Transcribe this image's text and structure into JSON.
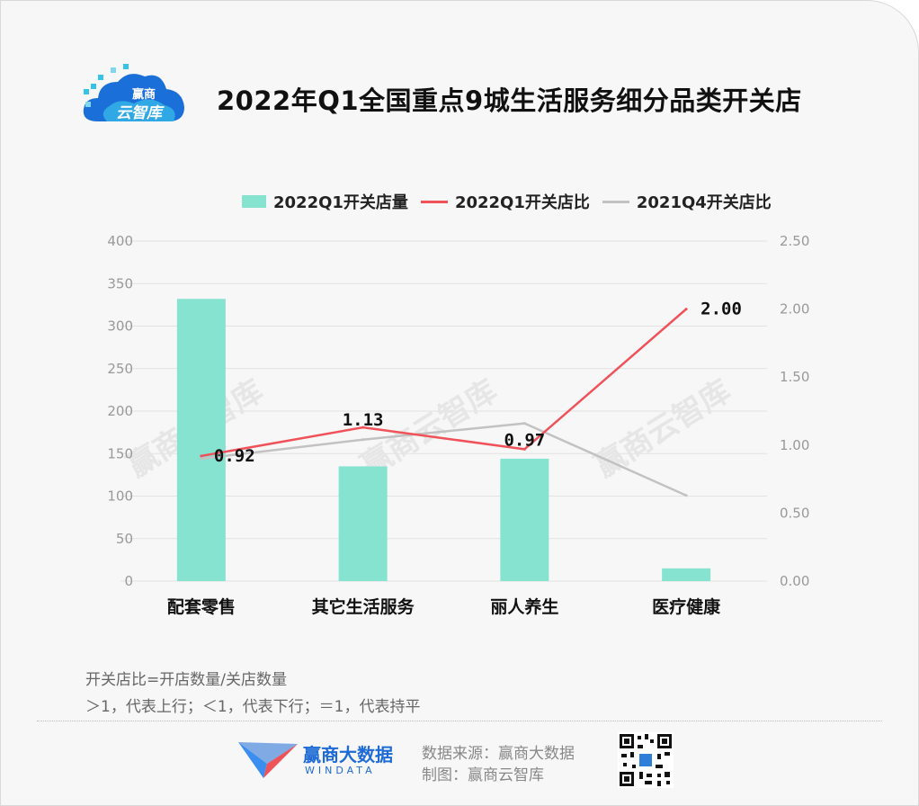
{
  "header": {
    "logo_line1": "赢商",
    "logo_line2": "云智库",
    "title": "2022年Q1全国重点9城生活服务细分品类开关店"
  },
  "legend": [
    {
      "label": "2022Q1开关店量",
      "kind": "bar",
      "color": "#86e3d0"
    },
    {
      "label": "2022Q1开关店比",
      "kind": "line",
      "color": "#f0525a"
    },
    {
      "label": "2021Q4开关店比",
      "kind": "line",
      "color": "#c2c2c2"
    }
  ],
  "chart_data": {
    "type": "bar",
    "categories": [
      "配套零售",
      "其它生活服务",
      "丽人养生",
      "医疗健康"
    ],
    "series": [
      {
        "name": "2022Q1开关店量",
        "type": "bar",
        "axis": "left",
        "color": "#86e3d0",
        "values": [
          332,
          135,
          144,
          15
        ]
      },
      {
        "name": "2022Q1开关店比",
        "type": "line",
        "axis": "right",
        "color": "#f0525a",
        "values": [
          0.92,
          1.13,
          0.97,
          2.0
        ],
        "data_labels": [
          "0.92",
          "1.13",
          "0.97",
          "2.00"
        ]
      },
      {
        "name": "2021Q4开关店比",
        "type": "line",
        "axis": "right",
        "color": "#c2c2c2",
        "values": [
          0.9,
          1.04,
          1.16,
          0.63
        ]
      }
    ],
    "y_left": {
      "min": 0,
      "max": 400,
      "ticks": [
        "0",
        "50",
        "100",
        "150",
        "200",
        "250",
        "300",
        "350",
        "400"
      ]
    },
    "y_right": {
      "min": 0,
      "max": 2.5,
      "ticks": [
        "0.00",
        "0.50",
        "1.00",
        "1.50",
        "2.00",
        "2.50"
      ]
    },
    "grid": true,
    "legend_position": "top"
  },
  "watermark": "赢商云智库",
  "notes": {
    "line1": "开关店比=开店数量/关店数量",
    "line2": "＞1，代表上行；＜1，代表下行；＝1，代表持平"
  },
  "footer": {
    "brand_name": "赢商大数据",
    "brand_sub": "WINDATA",
    "source": "数据来源：赢商大数据",
    "maker": "制图：赢商云智库"
  }
}
